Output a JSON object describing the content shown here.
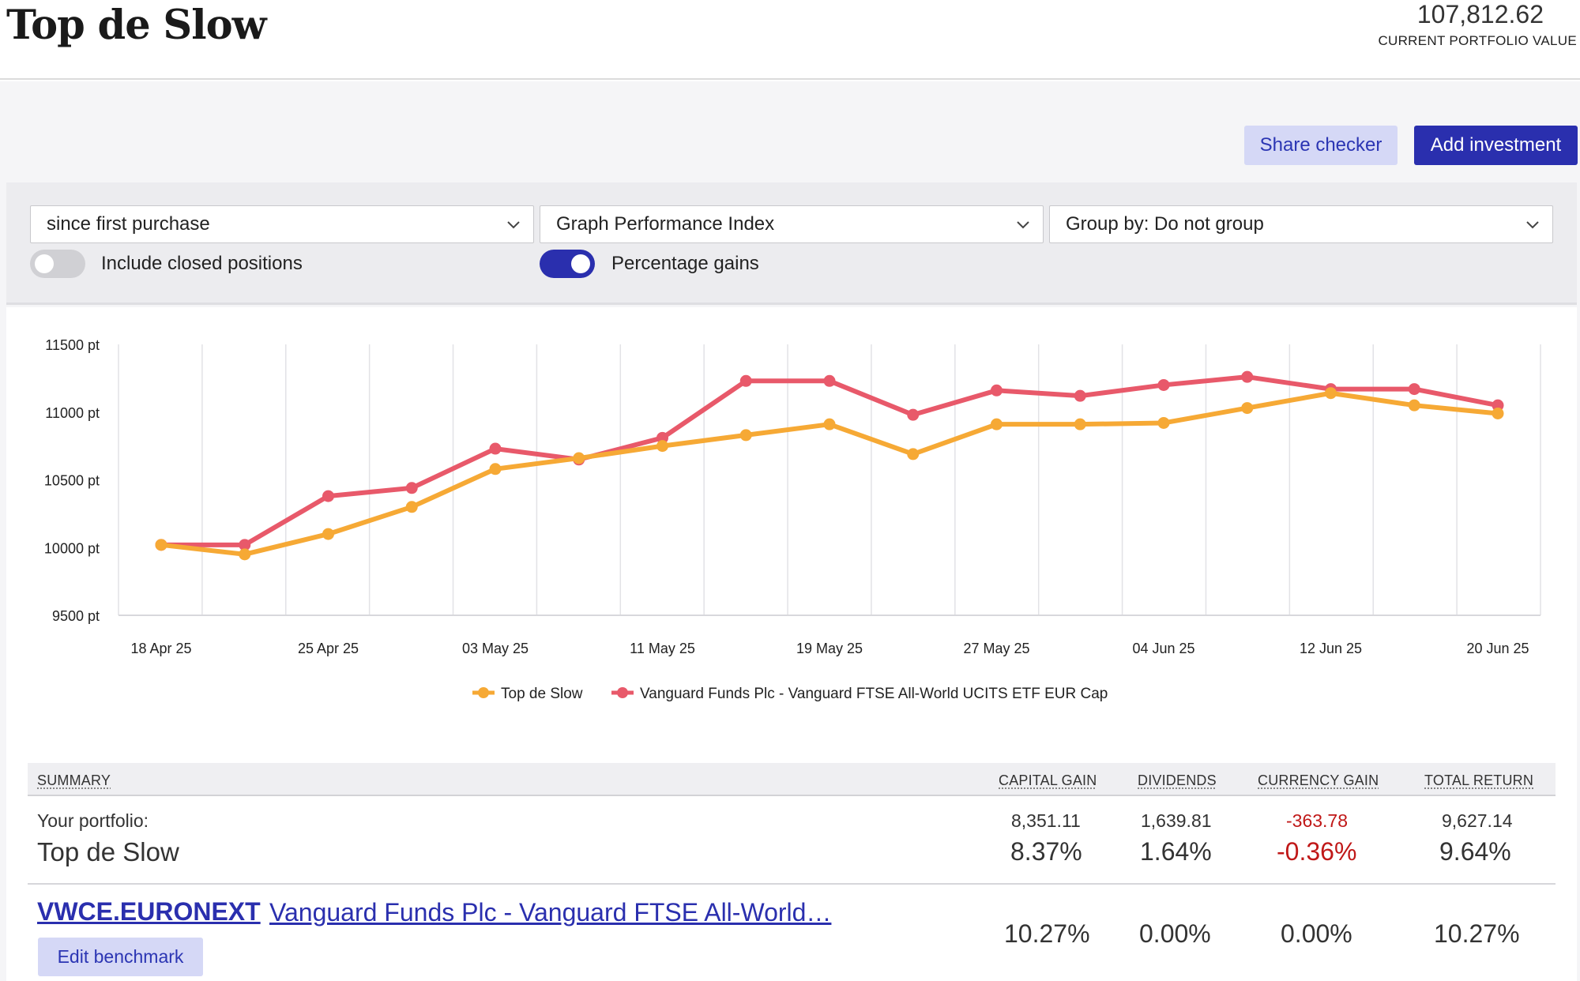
{
  "header": {
    "title": "Top de Slow",
    "portfolio_value": "107,812.62",
    "portfolio_value_label": "CURRENT PORTFOLIO VALUE"
  },
  "actions": {
    "share_checker": "Share checker",
    "add_investment": "Add investment"
  },
  "filters": {
    "period": "since first purchase",
    "graph_type": "Graph Performance Index",
    "group_by": "Group by: Do not group",
    "include_closed_label": "Include closed positions",
    "include_closed_on": false,
    "percentage_gains_label": "Percentage gains",
    "percentage_gains_on": true
  },
  "colors": {
    "accent": "#2a2fae",
    "series_portfolio": "#f6a935",
    "series_benchmark": "#e8596a",
    "negative": "#c01818"
  },
  "chart_data": {
    "type": "line",
    "x_labels": [
      "18 Apr 25",
      "25 Apr 25",
      "03 May 25",
      "11 May 25",
      "19 May 25",
      "27 May 25",
      "04 Jun 25",
      "12 Jun 25",
      "20 Jun 25"
    ],
    "x": [
      "18 Apr 25",
      "22 Apr 25",
      "25 Apr 25",
      "29 Apr 25",
      "03 May 25",
      "07 May 25",
      "11 May 25",
      "15 May 25",
      "19 May 25",
      "23 May 25",
      "27 May 25",
      "31 May 25",
      "04 Jun 25",
      "08 Jun 25",
      "12 Jun 25",
      "16 Jun 25",
      "20 Jun 25"
    ],
    "y_ticks": [
      "11500 pt",
      "11000 pt",
      "10500 pt",
      "10000 pt",
      "9500 pt"
    ],
    "ylim": [
      9500,
      11500
    ],
    "series": [
      {
        "name": "Top de Slow",
        "values": [
          10020,
          9950,
          10100,
          10300,
          10580,
          10660,
          10750,
          10830,
          10910,
          10690,
          10910,
          10910,
          10920,
          11030,
          11140,
          11050,
          10990
        ]
      },
      {
        "name": "Vanguard Funds Plc - Vanguard FTSE All-World UCITS ETF EUR Cap",
        "values": [
          10020,
          10020,
          10380,
          10440,
          10730,
          10650,
          10810,
          11230,
          11230,
          10980,
          11160,
          11120,
          11200,
          11260,
          11170,
          11170,
          11050
        ]
      }
    ],
    "grid": true,
    "legend": "bottom-center"
  },
  "summary": {
    "headers": {
      "summary": "SUMMARY",
      "capital_gain": "CAPITAL GAIN",
      "dividends": "DIVIDENDS",
      "currency_gain": "CURRENCY GAIN",
      "total_return": "TOTAL RETURN"
    },
    "portfolio": {
      "label": "Your portfolio:",
      "name": "Top de Slow",
      "capital_gain": "8,351.11",
      "capital_gain_pct": "8.37%",
      "dividends": "1,639.81",
      "dividends_pct": "1.64%",
      "currency_gain": "-363.78",
      "currency_gain_pct": "-0.36%",
      "total_return": "9,627.14",
      "total_return_pct": "9.64%"
    },
    "benchmark": {
      "ticker": "VWCE.EURONEXT",
      "name": "Vanguard Funds Plc - Vanguard FTSE All-World…",
      "edit_label": "Edit benchmark",
      "capital_gain_pct": "10.27%",
      "dividends_pct": "0.00%",
      "currency_gain_pct": "0.00%",
      "total_return_pct": "10.27%"
    }
  }
}
